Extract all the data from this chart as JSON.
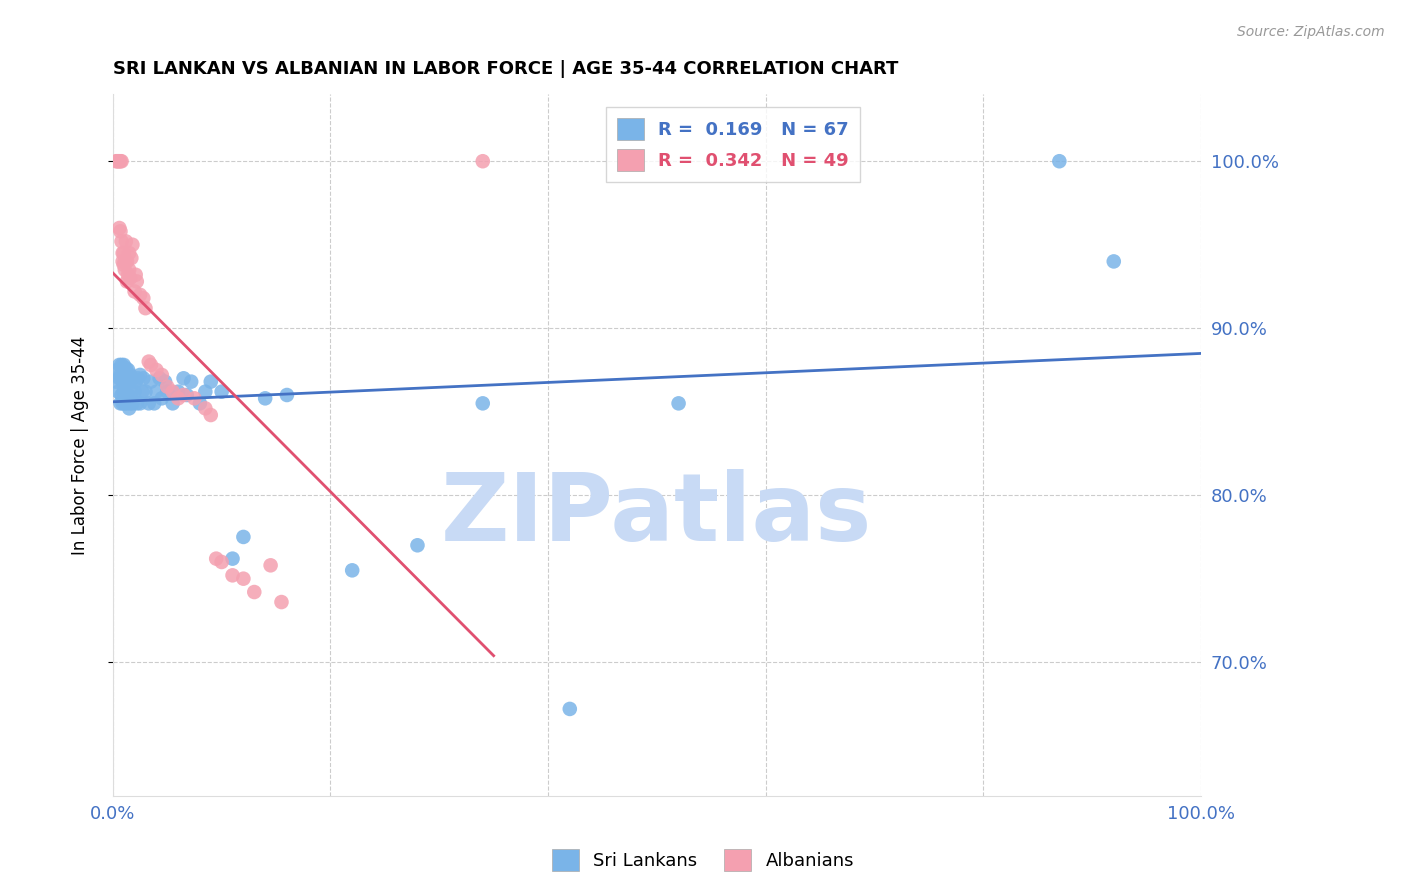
{
  "title": "SRI LANKAN VS ALBANIAN IN LABOR FORCE | AGE 35-44 CORRELATION CHART",
  "source": "Source: ZipAtlas.com",
  "ylabel": "In Labor Force | Age 35-44",
  "xlim": [
    0.0,
    1.0
  ],
  "ylim": [
    0.62,
    1.04
  ],
  "yticks": [
    0.7,
    0.8,
    0.9,
    1.0
  ],
  "ytick_labels": [
    "70.0%",
    "80.0%",
    "90.0%",
    "100.0%"
  ],
  "sri_lankan_color": "#7ab4e8",
  "albanian_color": "#f4a0b0",
  "sri_lankan_R": 0.169,
  "sri_lankan_N": 67,
  "albanian_R": 0.342,
  "albanian_N": 49,
  "trend_blue": "#4472c4",
  "trend_pink": "#e05070",
  "axis_color": "#4472c4",
  "grid_color": "#cccccc",
  "watermark": "ZIPatlas",
  "watermark_color": "#c8daf5",
  "sri_lankans_x": [
    0.003,
    0.004,
    0.005,
    0.006,
    0.006,
    0.007,
    0.007,
    0.008,
    0.008,
    0.009,
    0.009,
    0.01,
    0.01,
    0.01,
    0.011,
    0.011,
    0.012,
    0.012,
    0.012,
    0.013,
    0.013,
    0.014,
    0.014,
    0.015,
    0.015,
    0.016,
    0.016,
    0.017,
    0.018,
    0.018,
    0.02,
    0.021,
    0.022,
    0.023,
    0.025,
    0.025,
    0.027,
    0.028,
    0.03,
    0.033,
    0.035,
    0.038,
    0.04,
    0.043,
    0.045,
    0.048,
    0.05,
    0.055,
    0.06,
    0.065,
    0.068,
    0.072,
    0.08,
    0.085,
    0.09,
    0.1,
    0.11,
    0.12,
    0.14,
    0.16,
    0.22,
    0.28,
    0.34,
    0.42,
    0.52,
    0.87,
    0.92
  ],
  "sri_lankans_y": [
    0.868,
    0.875,
    0.862,
    0.87,
    0.878,
    0.855,
    0.872,
    0.86,
    0.878,
    0.855,
    0.868,
    0.862,
    0.87,
    0.878,
    0.855,
    0.872,
    0.858,
    0.868,
    0.876,
    0.855,
    0.87,
    0.86,
    0.875,
    0.852,
    0.868,
    0.855,
    0.872,
    0.862,
    0.855,
    0.87,
    0.862,
    0.868,
    0.855,
    0.87,
    0.872,
    0.855,
    0.862,
    0.87,
    0.862,
    0.855,
    0.868,
    0.855,
    0.862,
    0.87,
    0.858,
    0.868,
    0.862,
    0.855,
    0.862,
    0.87,
    0.86,
    0.868,
    0.855,
    0.862,
    0.868,
    0.862,
    0.762,
    0.775,
    0.858,
    0.86,
    0.755,
    0.77,
    0.855,
    0.672,
    0.855,
    1.0,
    0.94
  ],
  "albanians_x": [
    0.003,
    0.004,
    0.005,
    0.006,
    0.006,
    0.007,
    0.007,
    0.008,
    0.008,
    0.009,
    0.009,
    0.01,
    0.01,
    0.011,
    0.011,
    0.012,
    0.013,
    0.013,
    0.014,
    0.015,
    0.015,
    0.016,
    0.017,
    0.018,
    0.02,
    0.021,
    0.022,
    0.025,
    0.028,
    0.03,
    0.033,
    0.035,
    0.04,
    0.045,
    0.05,
    0.055,
    0.06,
    0.065,
    0.075,
    0.085,
    0.09,
    0.095,
    0.1,
    0.11,
    0.12,
    0.13,
    0.145,
    0.155,
    0.34
  ],
  "albanians_y": [
    1.0,
    1.0,
    1.0,
    1.0,
    0.96,
    1.0,
    0.958,
    1.0,
    0.952,
    0.945,
    0.94,
    0.945,
    0.938,
    0.935,
    0.94,
    0.952,
    0.928,
    0.94,
    0.932,
    0.945,
    0.935,
    0.93,
    0.942,
    0.95,
    0.922,
    0.932,
    0.928,
    0.92,
    0.918,
    0.912,
    0.88,
    0.878,
    0.875,
    0.872,
    0.865,
    0.862,
    0.858,
    0.86,
    0.858,
    0.852,
    0.848,
    0.762,
    0.76,
    0.752,
    0.75,
    0.742,
    0.758,
    0.736,
    1.0
  ]
}
